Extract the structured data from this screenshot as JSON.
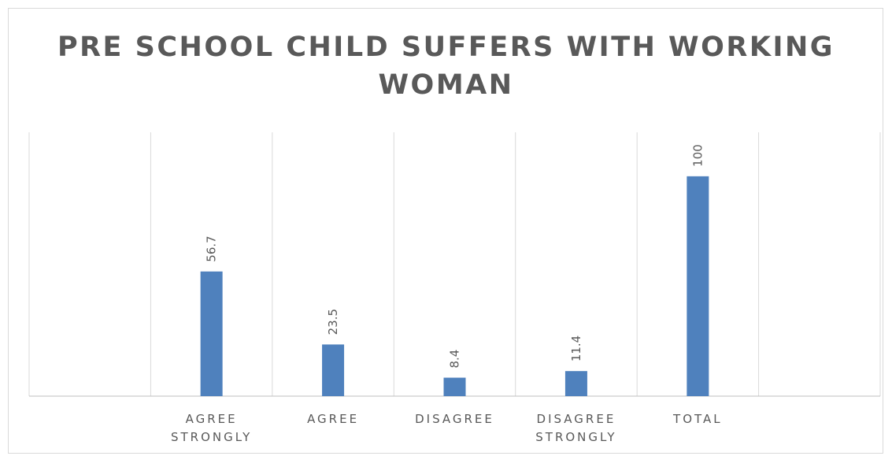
{
  "chart_data": {
    "type": "bar",
    "title": "PRE SCHOOL CHILD SUFFERS WITH WORKING WOMAN",
    "xlabel": "",
    "ylabel": "",
    "categories": [
      "",
      "AGREE STRONGLY",
      "AGREE",
      "DISAGREE",
      "DISAGREE STRONGLY",
      "TOTAL",
      ""
    ],
    "values": [
      null,
      56.7,
      23.5,
      8.4,
      11.4,
      100,
      null
    ],
    "ylim": [
      0,
      120
    ],
    "grid": "vertical category gridlines",
    "legend": "none",
    "data_labels": "rotated, above bars",
    "colors": {
      "bar": "#4F81BD",
      "text": "#595959",
      "gridline": "#d9d9d9",
      "axis": "#bfbfbf"
    }
  }
}
